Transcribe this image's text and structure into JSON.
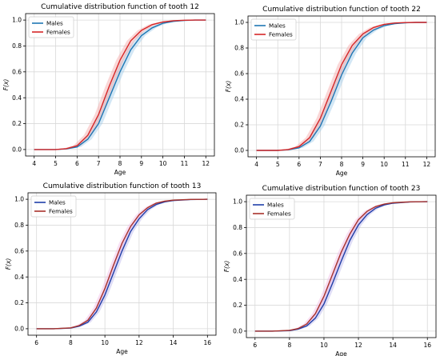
{
  "chart_data": [
    {
      "type": "line",
      "title": "Cumulative distribution function of tooth 12",
      "xlabel": "Age",
      "ylabel": "F(x)",
      "xlim": [
        3.6,
        12.4
      ],
      "ylim": [
        -0.05,
        1.05
      ],
      "xticks": [
        4,
        5,
        6,
        7,
        8,
        9,
        10,
        11,
        12
      ],
      "yticks": [
        0.0,
        0.2,
        0.4,
        0.6,
        0.8,
        1.0
      ],
      "grid": true,
      "legend": "top-left",
      "series": [
        {
          "name": "Males",
          "color": "#1f77b4",
          "band_color": "#9ecae9",
          "x": [
            4,
            5,
            5.5,
            6,
            6.5,
            7,
            7.5,
            8,
            8.5,
            9,
            9.5,
            10,
            10.5,
            11,
            11.5,
            12
          ],
          "y": [
            0.0,
            0.0,
            0.005,
            0.02,
            0.08,
            0.2,
            0.4,
            0.6,
            0.77,
            0.88,
            0.94,
            0.975,
            0.99,
            0.997,
            1.0,
            1.0
          ]
        },
        {
          "name": "Females",
          "color": "#d62728",
          "band_color": "#f4a6a6",
          "x": [
            4,
            5,
            5.5,
            6,
            6.5,
            7,
            7.5,
            8,
            8.5,
            9,
            9.5,
            10,
            10.5,
            11,
            11.5,
            12
          ],
          "y": [
            0.0,
            0.0,
            0.007,
            0.03,
            0.11,
            0.27,
            0.49,
            0.69,
            0.84,
            0.92,
            0.965,
            0.985,
            0.995,
            0.999,
            1.0,
            1.0
          ]
        }
      ]
    },
    {
      "type": "line",
      "title": "Cumulative distribution function of tooth 22",
      "xlabel": "Age",
      "ylabel": "F(x)",
      "xlim": [
        3.6,
        12.4
      ],
      "ylim": [
        -0.05,
        1.05
      ],
      "xticks": [
        4,
        5,
        6,
        7,
        8,
        9,
        10,
        11,
        12
      ],
      "yticks": [
        0.0,
        0.2,
        0.4,
        0.6,
        0.8,
        1.0
      ],
      "grid": true,
      "legend": "top-left",
      "series": [
        {
          "name": "Males",
          "color": "#1f77b4",
          "band_color": "#9ecae9",
          "x": [
            4,
            5,
            5.5,
            6,
            6.5,
            7,
            7.5,
            8,
            8.5,
            9,
            9.5,
            10,
            10.5,
            11,
            11.5,
            12
          ],
          "y": [
            0.0,
            0.0,
            0.005,
            0.02,
            0.07,
            0.19,
            0.38,
            0.59,
            0.76,
            0.88,
            0.94,
            0.975,
            0.99,
            0.997,
            1.0,
            1.0
          ]
        },
        {
          "name": "Females",
          "color": "#d62728",
          "band_color": "#f4a6a6",
          "x": [
            4,
            5,
            5.5,
            6,
            6.5,
            7,
            7.5,
            8,
            8.5,
            9,
            9.5,
            10,
            10.5,
            11,
            11.5,
            12
          ],
          "y": [
            0.0,
            0.0,
            0.007,
            0.03,
            0.1,
            0.25,
            0.46,
            0.67,
            0.82,
            0.91,
            0.96,
            0.985,
            0.995,
            0.999,
            1.0,
            1.0
          ]
        }
      ]
    },
    {
      "type": "line",
      "title": "Cumulative distribution function of tooth 13",
      "xlabel": "Age",
      "ylabel": "F(x)",
      "xlim": [
        5.5,
        16.5
      ],
      "ylim": [
        -0.05,
        1.05
      ],
      "xticks": [
        6,
        8,
        10,
        12,
        14,
        16
      ],
      "yticks": [
        0.0,
        0.2,
        0.4,
        0.6,
        0.8,
        1.0
      ],
      "grid": true,
      "legend": "top-left",
      "series": [
        {
          "name": "Males",
          "color": "#1f3fa8",
          "band_color": "#b9b4ec",
          "x": [
            6,
            7,
            8,
            8.5,
            9,
            9.5,
            10,
            10.5,
            11,
            11.5,
            12,
            12.5,
            13,
            13.5,
            14,
            15,
            16
          ],
          "y": [
            0.0,
            0.0,
            0.005,
            0.02,
            0.05,
            0.13,
            0.26,
            0.43,
            0.6,
            0.75,
            0.85,
            0.92,
            0.96,
            0.98,
            0.99,
            0.998,
            1.0
          ]
        },
        {
          "name": "Females",
          "color": "#a8322b",
          "band_color": "#f0b8e4",
          "x": [
            6,
            7,
            8,
            8.5,
            9,
            9.5,
            10,
            10.5,
            11,
            11.5,
            12,
            12.5,
            13,
            13.5,
            14,
            15,
            16
          ],
          "y": [
            0.0,
            0.0,
            0.007,
            0.025,
            0.065,
            0.16,
            0.31,
            0.49,
            0.66,
            0.79,
            0.88,
            0.935,
            0.97,
            0.985,
            0.993,
            0.999,
            1.0
          ]
        }
      ]
    },
    {
      "type": "line",
      "title": "Cumulative distribution function of tooth 23",
      "xlabel": "Age",
      "ylabel": "F(x)",
      "xlim": [
        5.5,
        16.5
      ],
      "ylim": [
        -0.05,
        1.05
      ],
      "xticks": [
        6,
        8,
        10,
        12,
        14,
        16
      ],
      "yticks": [
        0.0,
        0.2,
        0.4,
        0.6,
        0.8,
        1.0
      ],
      "grid": true,
      "legend": "top-left",
      "series": [
        {
          "name": "Males",
          "color": "#1f3fa8",
          "band_color": "#b9b4ec",
          "x": [
            6,
            7,
            8,
            8.5,
            9,
            9.5,
            10,
            10.5,
            11,
            11.5,
            12,
            12.5,
            13,
            13.5,
            14,
            15,
            16
          ],
          "y": [
            0.0,
            0.0,
            0.004,
            0.015,
            0.04,
            0.1,
            0.21,
            0.37,
            0.54,
            0.7,
            0.82,
            0.9,
            0.95,
            0.975,
            0.988,
            0.998,
            1.0
          ]
        },
        {
          "name": "Females",
          "color": "#a8322b",
          "band_color": "#f0b8e4",
          "x": [
            6,
            7,
            8,
            8.5,
            9,
            9.5,
            10,
            10.5,
            11,
            11.5,
            12,
            12.5,
            13,
            13.5,
            14,
            15,
            16
          ],
          "y": [
            0.0,
            0.0,
            0.006,
            0.02,
            0.055,
            0.135,
            0.27,
            0.44,
            0.61,
            0.75,
            0.86,
            0.925,
            0.962,
            0.982,
            0.992,
            0.999,
            1.0
          ]
        }
      ]
    }
  ]
}
